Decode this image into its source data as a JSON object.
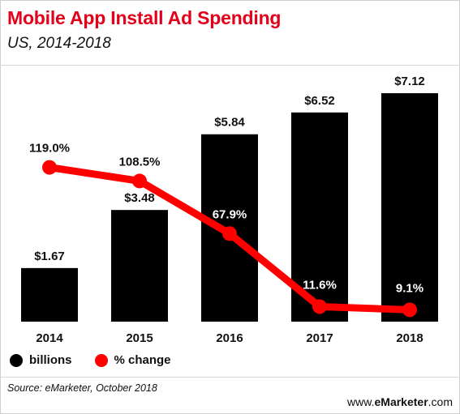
{
  "title": "Mobile App Install Ad Spending",
  "subtitle": "US, 2014-2018",
  "chart_data": {
    "type": "bar",
    "categories": [
      "2014",
      "2015",
      "2016",
      "2017",
      "2018"
    ],
    "series": [
      {
        "name": "billions",
        "type": "bar",
        "values": [
          1.67,
          3.48,
          5.84,
          6.52,
          7.12
        ],
        "labels": [
          "$1.67",
          "$3.48",
          "$5.84",
          "$6.52",
          "$7.12"
        ],
        "color": "#000000"
      },
      {
        "name": "% change",
        "type": "line",
        "values": [
          119.0,
          108.5,
          67.9,
          11.6,
          9.1
        ],
        "labels": [
          "119.0%",
          "108.5%",
          "67.9%",
          "11.6%",
          "9.1%"
        ],
        "color": "#ff0000"
      }
    ],
    "legend": "bottom-left",
    "grid": false
  },
  "legend": {
    "bars": "billions",
    "line": "% change"
  },
  "source": "Source: eMarketer, October 2018",
  "brand": {
    "prefix": "www.",
    "name": "eMarketer",
    "suffix": ".com"
  },
  "colors": {
    "title": "#e2001a",
    "bar": "#000000",
    "line": "#ff0000"
  }
}
